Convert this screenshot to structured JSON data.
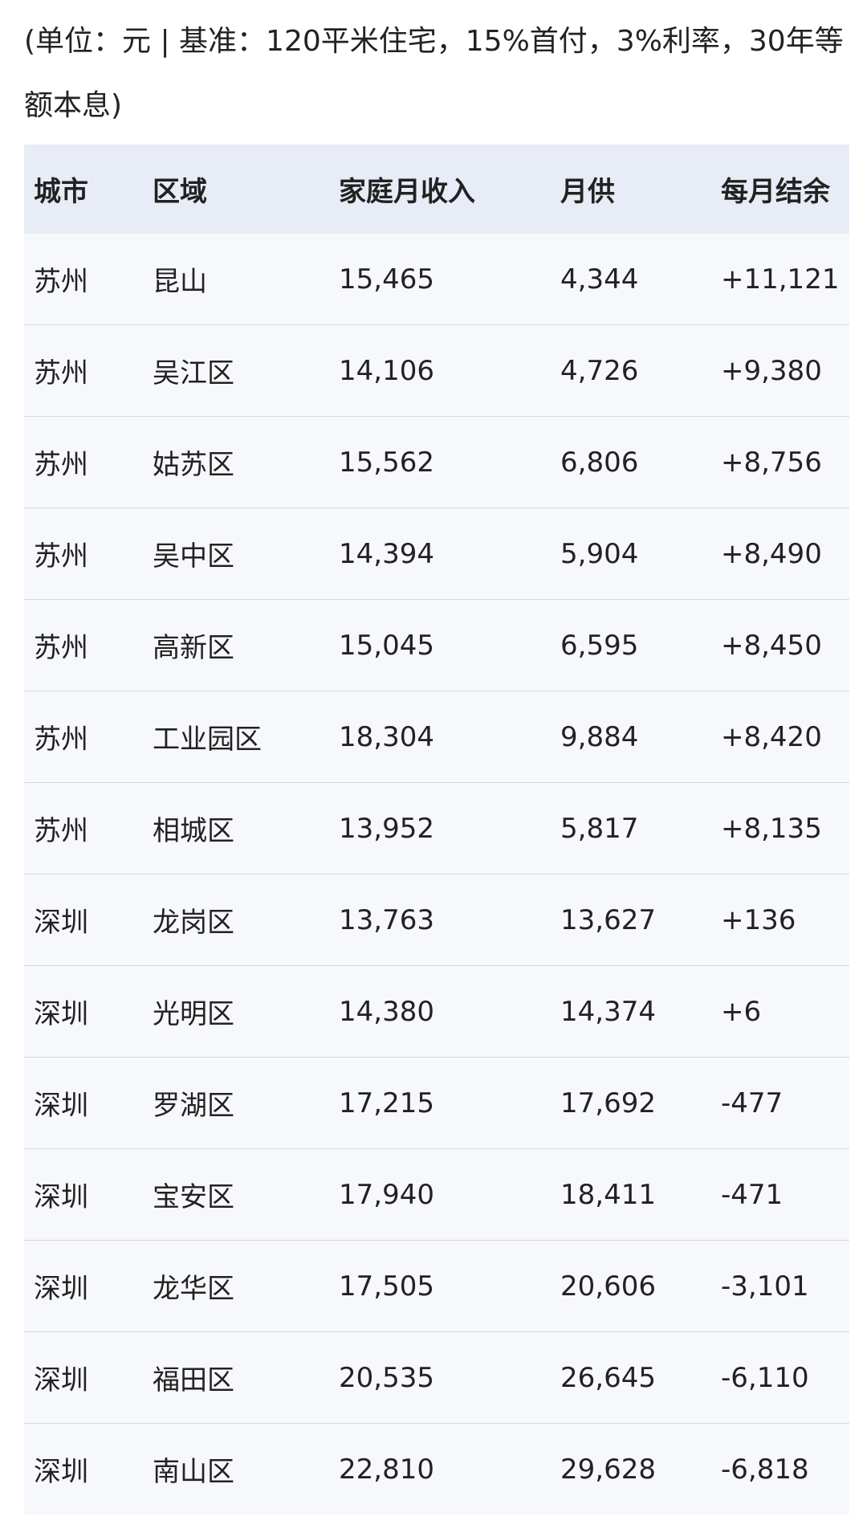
{
  "caption": "(单位：元 | 基准：120平米住宅，15%首付，3%利率，30年等额本息)",
  "table": {
    "headers": [
      "城市",
      "区域",
      "家庭月收入",
      "月供",
      "每月结余"
    ],
    "rows": [
      [
        "苏州",
        "昆山",
        "15,465",
        "4,344",
        "+11,121"
      ],
      [
        "苏州",
        "吴江区",
        "14,106",
        "4,726",
        "+9,380"
      ],
      [
        "苏州",
        "姑苏区",
        "15,562",
        "6,806",
        "+8,756"
      ],
      [
        "苏州",
        "吴中区",
        "14,394",
        "5,904",
        "+8,490"
      ],
      [
        "苏州",
        "高新区",
        "15,045",
        "6,595",
        "+8,450"
      ],
      [
        "苏州",
        "工业园区",
        "18,304",
        "9,884",
        "+8,420"
      ],
      [
        "苏州",
        "相城区",
        "13,952",
        "5,817",
        "+8,135"
      ],
      [
        "深圳",
        "龙岗区",
        "13,763",
        "13,627",
        "+136"
      ],
      [
        "深圳",
        "光明区",
        "14,380",
        "14,374",
        "+6"
      ],
      [
        "深圳",
        "罗湖区",
        "17,215",
        "17,692",
        "-477"
      ],
      [
        "深圳",
        "宝安区",
        "17,940",
        "18,411",
        "-471"
      ],
      [
        "深圳",
        "龙华区",
        "17,505",
        "20,606",
        "-3,101"
      ],
      [
        "深圳",
        "福田区",
        "20,535",
        "26,645",
        "-6,110"
      ],
      [
        "深圳",
        "南山区",
        "22,810",
        "29,628",
        "-6,818"
      ]
    ]
  }
}
